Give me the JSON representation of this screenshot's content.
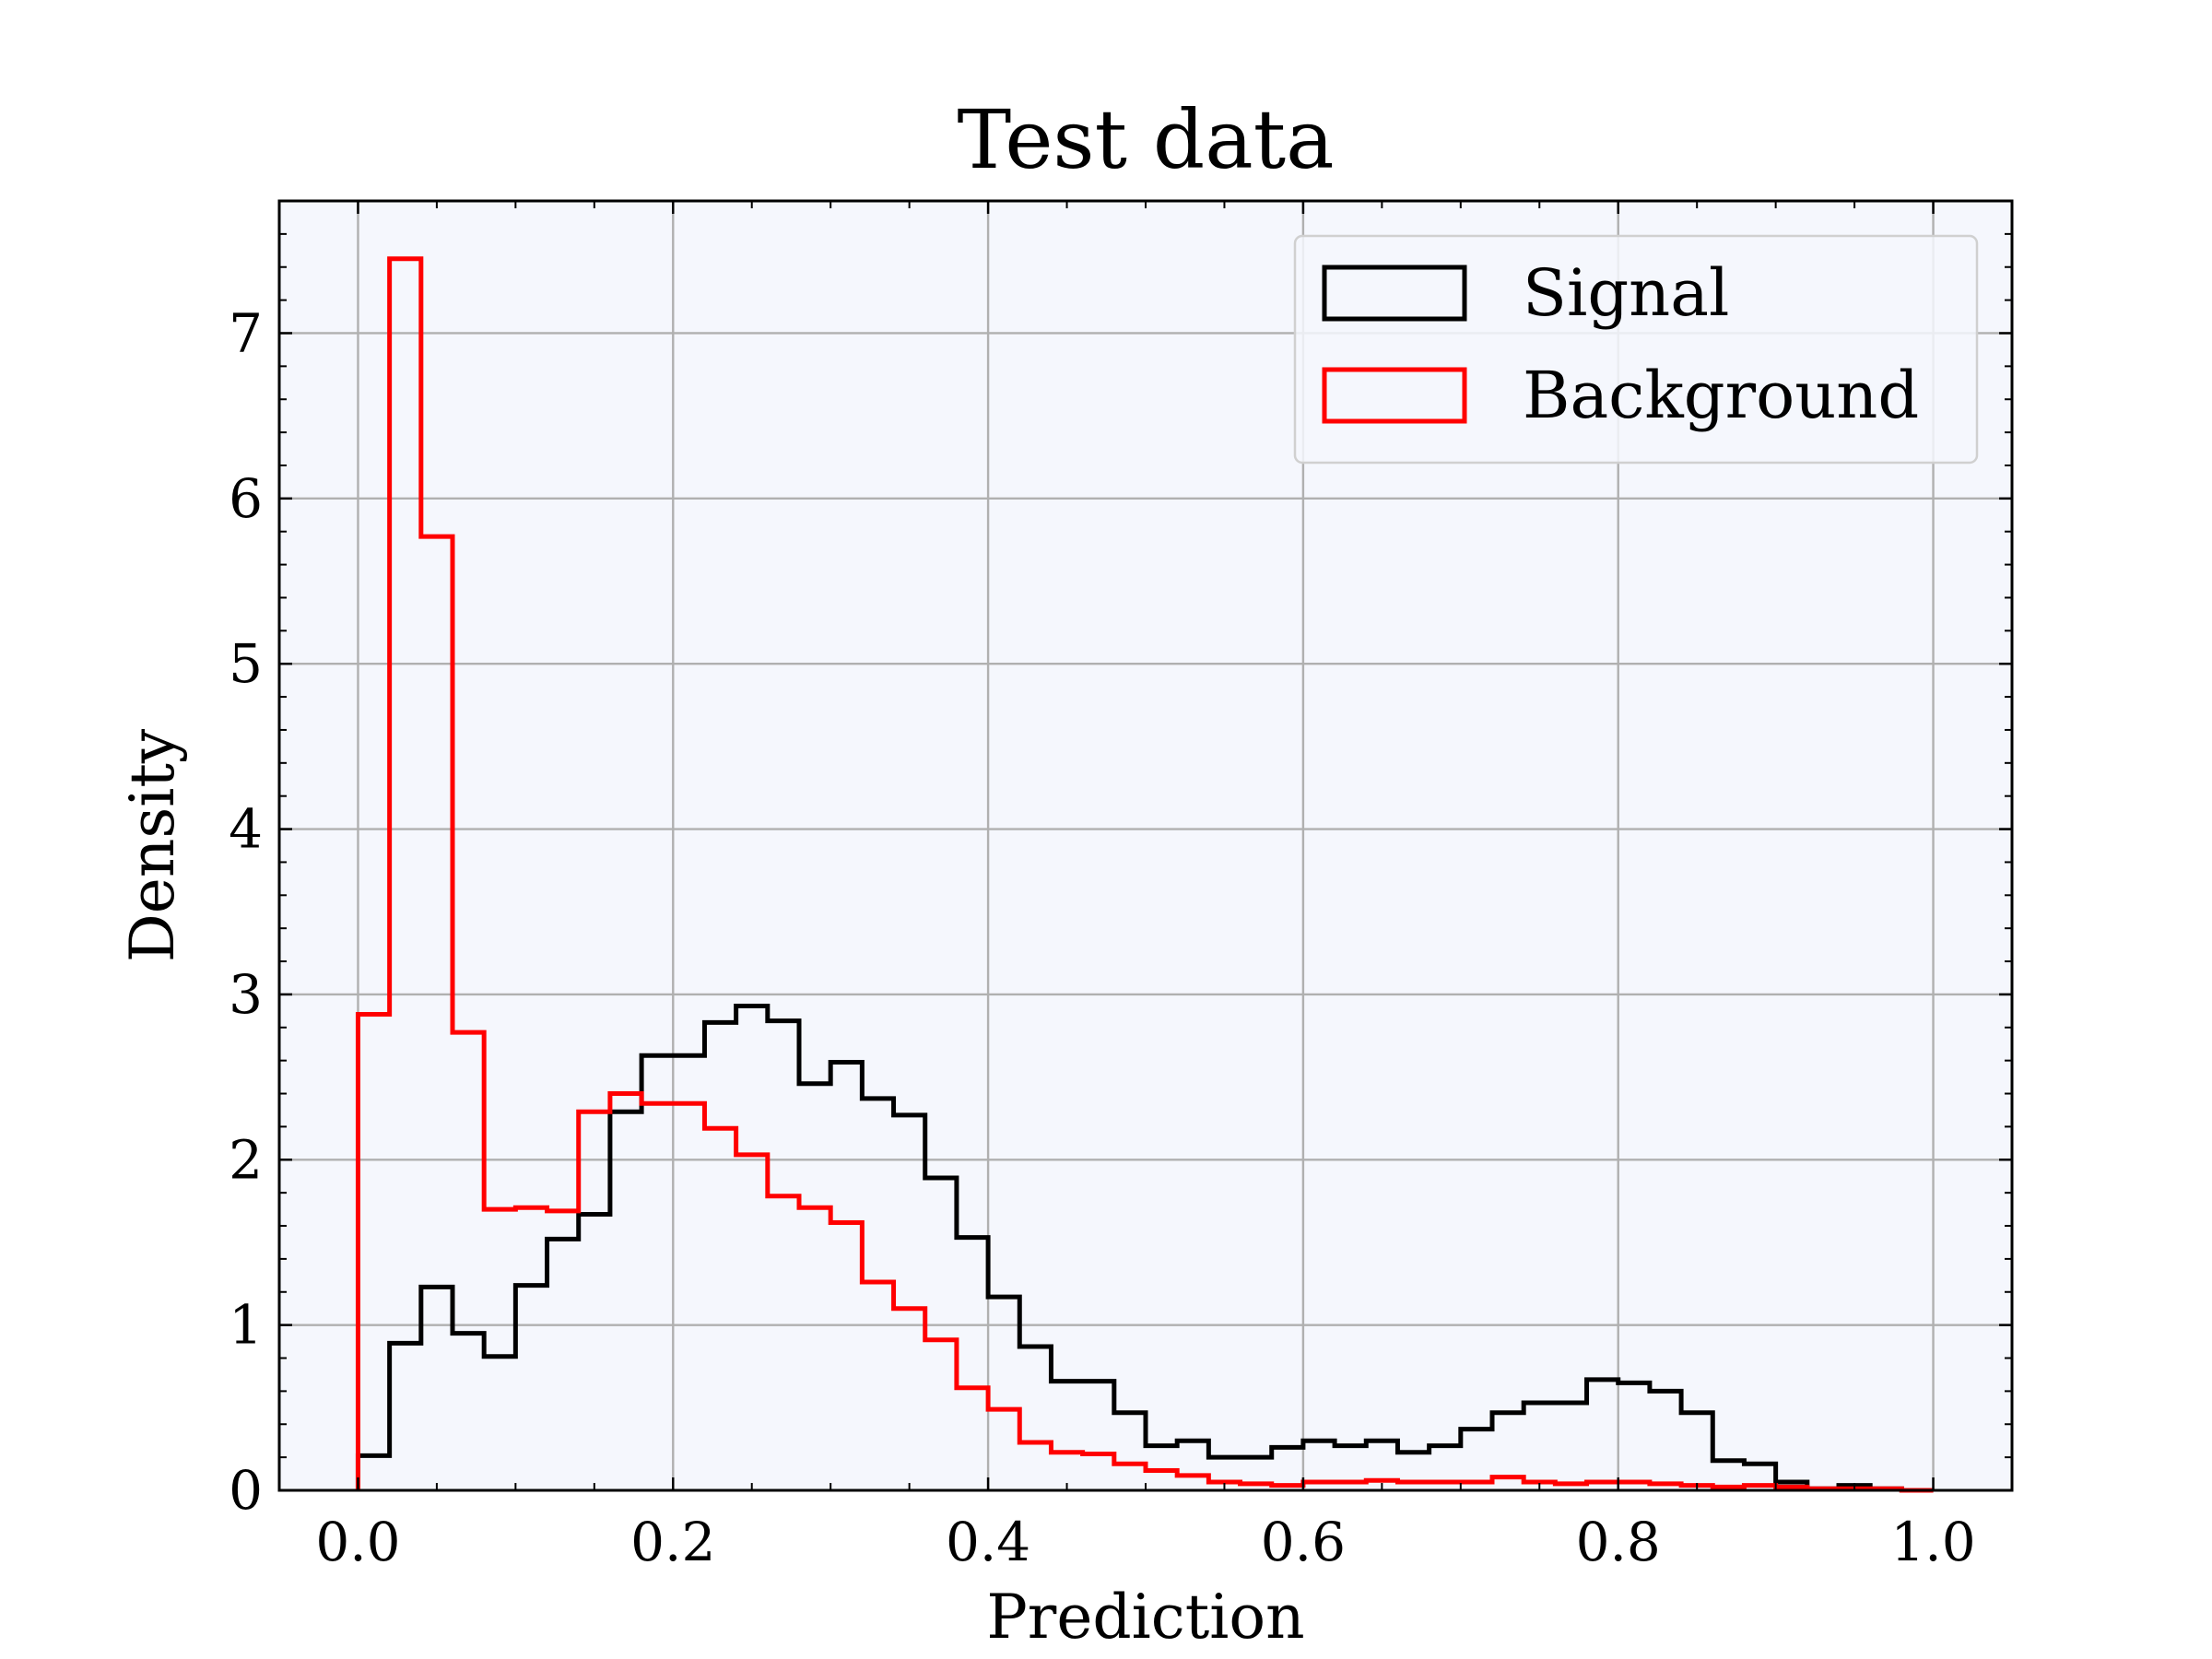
{
  "chart_data": {
    "type": "histogram",
    "title": "Test data",
    "xlabel": "Prediction",
    "ylabel": "Density",
    "xlim": [
      -0.05,
      1.05
    ],
    "ylim": [
      0,
      7.8
    ],
    "xticks": [
      "0.0",
      "0.2",
      "0.4",
      "0.6",
      "0.8",
      "1.0"
    ],
    "yticks": [
      "0",
      "1",
      "2",
      "3",
      "4",
      "5",
      "6",
      "7"
    ],
    "grid": true,
    "legend_position": "top-right",
    "background_color": "#f5f7fd",
    "bin_edges": [
      0.0,
      0.02,
      0.04,
      0.06,
      0.08,
      0.1,
      0.12,
      0.14,
      0.16,
      0.18,
      0.2,
      0.22,
      0.24,
      0.26,
      0.28,
      0.3,
      0.32,
      0.34,
      0.36,
      0.38,
      0.4,
      0.42,
      0.44,
      0.46,
      0.48,
      0.5,
      0.52,
      0.54,
      0.56,
      0.58,
      0.6,
      0.62,
      0.64,
      0.66,
      0.68,
      0.7,
      0.72,
      0.74,
      0.76,
      0.78,
      0.8,
      0.82,
      0.84,
      0.86,
      0.88,
      0.9,
      0.92,
      0.94,
      0.96,
      0.98,
      1.0
    ],
    "series": [
      {
        "name": "Signal",
        "color": "#000000",
        "values": [
          0.21,
          0.89,
          1.23,
          0.95,
          0.81,
          1.24,
          1.52,
          1.67,
          2.29,
          2.63,
          2.63,
          2.83,
          2.93,
          2.84,
          2.46,
          2.59,
          2.37,
          2.27,
          1.89,
          1.53,
          1.17,
          0.87,
          0.66,
          0.66,
          0.47,
          0.27,
          0.3,
          0.2,
          0.2,
          0.26,
          0.3,
          0.27,
          0.3,
          0.23,
          0.27,
          0.37,
          0.47,
          0.53,
          0.53,
          0.67,
          0.65,
          0.6,
          0.47,
          0.18,
          0.16,
          0.05,
          0.01,
          0.03,
          0.01,
          0.0
        ]
      },
      {
        "name": "Background",
        "color": "#ff0000",
        "values": [
          2.88,
          7.45,
          5.77,
          2.77,
          1.7,
          1.71,
          1.69,
          2.29,
          2.4,
          2.34,
          2.34,
          2.19,
          2.03,
          1.78,
          1.71,
          1.62,
          1.26,
          1.1,
          0.91,
          0.62,
          0.49,
          0.29,
          0.23,
          0.22,
          0.16,
          0.12,
          0.09,
          0.05,
          0.04,
          0.03,
          0.05,
          0.05,
          0.06,
          0.05,
          0.05,
          0.05,
          0.08,
          0.05,
          0.04,
          0.05,
          0.05,
          0.04,
          0.03,
          0.02,
          0.03,
          0.02,
          0.01,
          0.01,
          0.01,
          0.0
        ]
      }
    ]
  }
}
